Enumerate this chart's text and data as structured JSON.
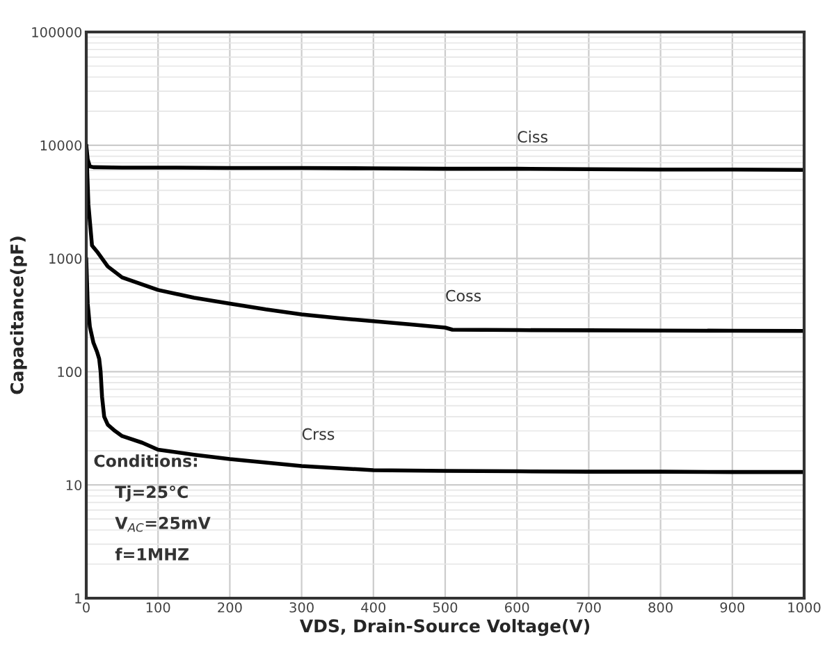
{
  "chart_data": {
    "type": "line",
    "xlabel": "VDS, Drain-Source Voltage(V)",
    "ylabel": "Capacitance(pF)",
    "xlim": [
      0,
      1000
    ],
    "xticks": [
      0,
      100,
      200,
      300,
      400,
      500,
      600,
      700,
      800,
      900,
      1000
    ],
    "ylim": [
      1,
      100000
    ],
    "yticks": [
      1,
      10,
      100,
      1000,
      10000,
      100000
    ],
    "log": "y",
    "grid": true,
    "marker": "none",
    "line_style": "solid",
    "series": [
      {
        "name": "Ciss",
        "color": "#000000",
        "x": [
          0,
          2,
          5,
          10,
          50,
          100,
          200,
          300,
          400,
          500,
          600,
          700,
          800,
          900,
          1000
        ],
        "values": [
          10000,
          7500,
          6500,
          6400,
          6350,
          6350,
          6300,
          6300,
          6250,
          6200,
          6200,
          6150,
          6100,
          6100,
          6050
        ]
      },
      {
        "name": "Coss",
        "color": "#000000",
        "x": [
          0,
          3,
          8,
          15,
          30,
          50,
          100,
          150,
          200,
          250,
          300,
          350,
          400,
          450,
          500,
          510,
          600,
          700,
          800,
          900,
          1000
        ],
        "values": [
          10000,
          3000,
          1300,
          1150,
          850,
          680,
          527,
          450,
          400,
          355,
          321,
          298,
          279,
          262,
          245,
          235,
          233,
          232,
          231,
          230,
          229
        ]
      },
      {
        "name": "Crss",
        "color": "#000000",
        "x": [
          0,
          2,
          5,
          10,
          15,
          18,
          20,
          22,
          25,
          30,
          40,
          50,
          78,
          100,
          150,
          200,
          300,
          400,
          500,
          600,
          700,
          800,
          900,
          1000
        ],
        "values": [
          1000,
          400,
          250,
          180,
          150,
          130,
          100,
          60,
          40,
          34,
          30,
          27,
          23.6,
          20.5,
          18.5,
          16.9,
          14.7,
          13.5,
          13.3,
          13.2,
          13.1,
          13.1,
          13.0,
          13.0
        ]
      }
    ],
    "annotations": [
      "Conditions:",
      "Tj=25°C",
      "V$_{AC}$=25mV",
      "f=1MHZ"
    ]
  }
}
